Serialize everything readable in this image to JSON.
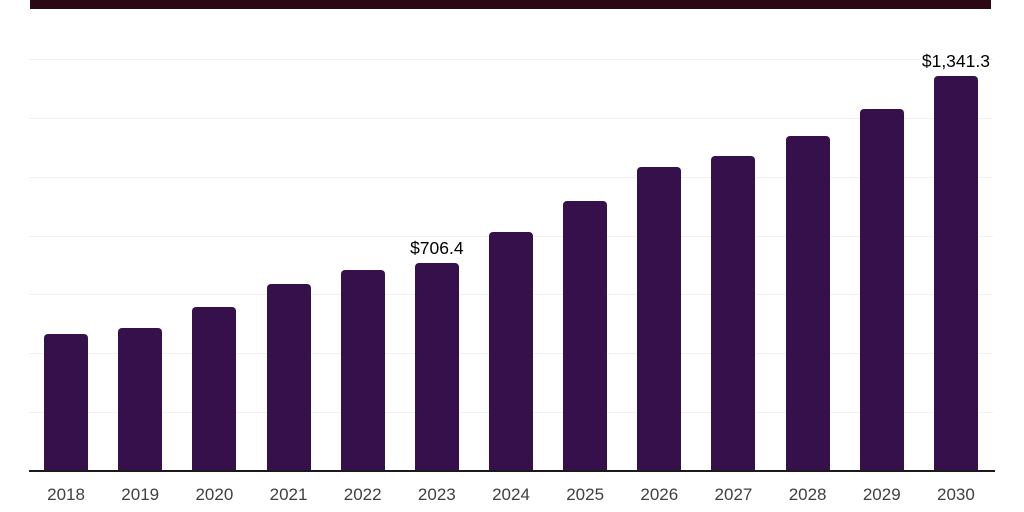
{
  "chart_data": {
    "type": "bar",
    "title": "",
    "xlabel": "",
    "ylabel": "",
    "categories": [
      "2018",
      "2019",
      "2020",
      "2021",
      "2022",
      "2023",
      "2024",
      "2025",
      "2026",
      "2027",
      "2028",
      "2029",
      "2030"
    ],
    "values": [
      465,
      485,
      558,
      634,
      682,
      706.4,
      811,
      916,
      1032,
      1072,
      1138,
      1230,
      1341.3
    ],
    "point_labels": {
      "2023": "$706.4",
      "2030": "$1,341.3"
    },
    "ylim": [
      0,
      1400
    ],
    "grid": "horizontal gridlines every 200, no y-axis tick labels",
    "legend_position": "none"
  },
  "colors": {
    "background": "#ffffff",
    "bar": "#36104A",
    "top_band": "#2A0915",
    "gridline": "#F1F1F1",
    "axis_line": "#1A1A1A",
    "tick_label": "#404040",
    "data_label": "#000000"
  }
}
